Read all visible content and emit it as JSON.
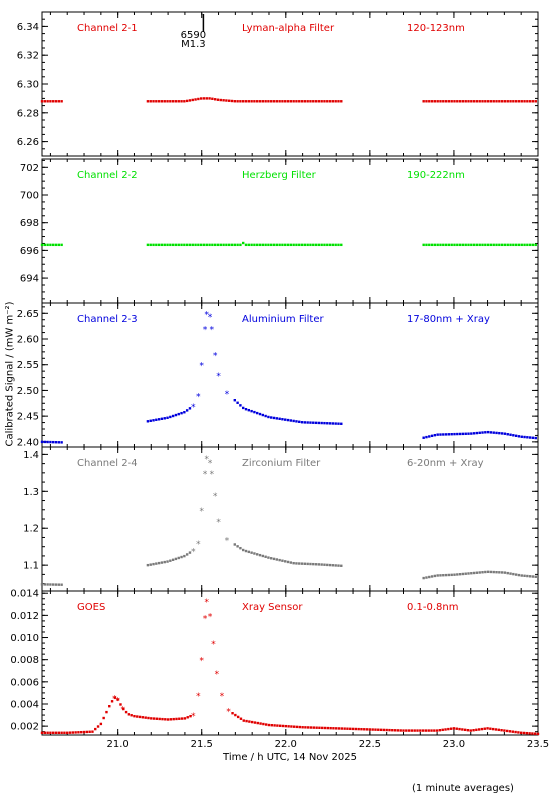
{
  "colors": {
    "red": "#e00000",
    "green": "#00e000",
    "blue": "#0000dd",
    "grey": "#7a7a7a",
    "axis": "#000000"
  },
  "ylabel": "Calibrated Signal / (mW m⁻²)",
  "xlabel": "Time / h UTC, 14 Nov 2025",
  "footnote": "(1 minute averages)",
  "flare_marker": {
    "time": 21.51,
    "labels": [
      "6590",
      "M1.3"
    ]
  },
  "chart_data": [
    {
      "type": "scatter",
      "panel": 1,
      "channel": "Channel 2-1",
      "filter": "Lyman-alpha Filter",
      "band": "120-123nm",
      "color": "red",
      "xlim": [
        20.55,
        23.5
      ],
      "ylim": [
        6.25,
        6.35
      ],
      "yticks": [
        6.26,
        6.28,
        6.3,
        6.32,
        6.34
      ],
      "ytick_labels": [
        "6.26",
        "6.28",
        "6.30",
        "6.32",
        "6.34"
      ],
      "segments": [
        {
          "x": [
            20.55,
            20.65,
            20.67
          ],
          "y": [
            6.288,
            6.288,
            6.288
          ]
        },
        {
          "x": [
            21.18,
            21.3,
            21.4,
            21.5,
            21.55,
            21.6,
            21.7,
            22.0,
            22.34
          ],
          "y": [
            6.288,
            6.288,
            6.288,
            6.29,
            6.29,
            6.289,
            6.288,
            6.288,
            6.288
          ]
        },
        {
          "x": [
            22.82,
            23.0,
            23.5
          ],
          "y": [
            6.288,
            6.288,
            6.288
          ]
        }
      ]
    },
    {
      "type": "scatter",
      "panel": 2,
      "channel": "Channel 2-2",
      "filter": "Herzberg Filter",
      "band": "190-222nm",
      "color": "green",
      "xlim": [
        20.55,
        23.5
      ],
      "ylim": [
        692.2,
        702.6
      ],
      "yticks": [
        694,
        696,
        698,
        700,
        702
      ],
      "ytick_labels": [
        "694",
        "696",
        "698",
        "700",
        "702"
      ],
      "segments": [
        {
          "x": [
            20.55,
            20.67
          ],
          "y": [
            696.4,
            696.4
          ]
        },
        {
          "x": [
            21.18,
            21.5,
            21.74,
            21.75,
            21.76,
            22.0,
            22.34
          ],
          "y": [
            696.4,
            696.4,
            696.4,
            696.6,
            696.4,
            696.4,
            696.4
          ]
        },
        {
          "x": [
            22.82,
            23.2,
            23.5
          ],
          "y": [
            696.4,
            696.4,
            696.4
          ]
        }
      ]
    },
    {
      "type": "scatter",
      "panel": 3,
      "channel": "Channel 2-3",
      "filter": "Aluminium Filter",
      "band": "17-80nm + Xray",
      "color": "blue",
      "xlim": [
        20.55,
        23.5
      ],
      "ylim": [
        2.39,
        2.67
      ],
      "yticks": [
        2.4,
        2.45,
        2.5,
        2.55,
        2.6,
        2.65
      ],
      "ytick_labels": [
        "2.40",
        "2.45",
        "2.50",
        "2.55",
        "2.60",
        "2.65"
      ],
      "segments": [
        {
          "x": [
            20.55,
            20.67
          ],
          "y": [
            2.4,
            2.399
          ]
        },
        {
          "x": [
            21.18,
            21.3,
            21.4,
            21.45,
            21.48,
            21.5,
            21.52,
            21.53,
            21.55,
            21.56,
            21.58,
            21.6,
            21.65,
            21.75,
            21.9,
            22.1,
            22.34
          ],
          "y": [
            2.44,
            2.447,
            2.458,
            2.47,
            2.49,
            2.55,
            2.62,
            2.65,
            2.645,
            2.62,
            2.57,
            2.53,
            2.495,
            2.465,
            2.448,
            2.438,
            2.435
          ]
        },
        {
          "x": [
            22.82,
            22.9,
            23.0,
            23.1,
            23.2,
            23.3,
            23.4,
            23.5
          ],
          "y": [
            2.408,
            2.414,
            2.415,
            2.416,
            2.419,
            2.416,
            2.41,
            2.407
          ]
        }
      ]
    },
    {
      "type": "scatter",
      "panel": 4,
      "channel": "Channel 2-4",
      "filter": "Zirconium Filter",
      "band": "6-20nm + Xray",
      "color": "grey",
      "xlim": [
        20.55,
        23.5
      ],
      "ylim": [
        1.03,
        1.42
      ],
      "yticks": [
        1.1,
        1.2,
        1.3,
        1.4
      ],
      "ytick_labels": [
        "1.1",
        "1.2",
        "1.3",
        "1.4"
      ],
      "segments": [
        {
          "x": [
            20.55,
            20.67
          ],
          "y": [
            1.048,
            1.047
          ]
        },
        {
          "x": [
            21.18,
            21.3,
            21.4,
            21.45,
            21.48,
            21.5,
            21.52,
            21.53,
            21.55,
            21.56,
            21.58,
            21.6,
            21.65,
            21.75,
            21.9,
            22.05,
            22.2,
            22.34
          ],
          "y": [
            1.1,
            1.11,
            1.125,
            1.14,
            1.16,
            1.25,
            1.35,
            1.39,
            1.38,
            1.35,
            1.29,
            1.22,
            1.17,
            1.14,
            1.12,
            1.105,
            1.102,
            1.098
          ]
        },
        {
          "x": [
            22.82,
            22.9,
            23.0,
            23.1,
            23.2,
            23.3,
            23.4,
            23.5
          ],
          "y": [
            1.065,
            1.072,
            1.074,
            1.078,
            1.082,
            1.08,
            1.072,
            1.068
          ]
        }
      ]
    },
    {
      "type": "scatter",
      "panel": 5,
      "channel": "GOES",
      "filter": "Xray Sensor",
      "band": "0.1-0.8nm",
      "color": "red",
      "xlim": [
        20.55,
        23.5
      ],
      "ylim": [
        0.0012,
        0.0142
      ],
      "yticks": [
        0.002,
        0.004,
        0.006,
        0.008,
        0.01,
        0.012,
        0.014
      ],
      "ytick_labels": [
        "0.002",
        "0.004",
        "0.006",
        "0.008",
        "0.010",
        "0.012",
        "0.014"
      ],
      "xticks": [
        21.0,
        21.5,
        22.0,
        22.5,
        23.0,
        23.5
      ],
      "xtick_labels": [
        "21.0",
        "21.5",
        "22.0",
        "22.5",
        "23.0",
        "23.5"
      ],
      "segments": [
        {
          "x": [
            20.55,
            20.7,
            20.85,
            20.9,
            20.95,
            20.98,
            21.0,
            21.03,
            21.06,
            21.1,
            21.2,
            21.3,
            21.4,
            21.45,
            21.48,
            21.5,
            21.52,
            21.53,
            21.55,
            21.57,
            21.59,
            21.62,
            21.66,
            21.75,
            21.9,
            22.1,
            22.3,
            22.5,
            22.7,
            22.9,
            23.0,
            23.1,
            23.2,
            23.3,
            23.4,
            23.5
          ],
          "y": [
            0.0014,
            0.0014,
            0.0015,
            0.0022,
            0.0038,
            0.0046,
            0.0044,
            0.0036,
            0.0031,
            0.0029,
            0.0027,
            0.0026,
            0.0027,
            0.003,
            0.0048,
            0.008,
            0.0118,
            0.0133,
            0.012,
            0.0095,
            0.0068,
            0.0048,
            0.0034,
            0.0025,
            0.0021,
            0.0019,
            0.0018,
            0.0017,
            0.0016,
            0.0016,
            0.0018,
            0.0016,
            0.0018,
            0.0016,
            0.0014,
            0.0013
          ]
        }
      ]
    }
  ]
}
